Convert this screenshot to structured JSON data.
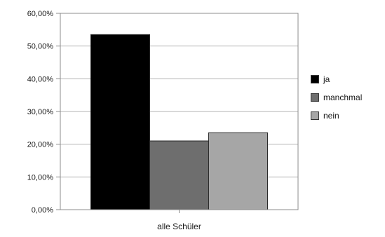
{
  "chart_data": {
    "type": "bar",
    "categories": [
      "alle Schüler"
    ],
    "series": [
      {
        "name": "ja",
        "values": [
          0.535
        ],
        "color": "#000000"
      },
      {
        "name": "manchmal",
        "values": [
          0.21
        ],
        "color": "#6e6e6e"
      },
      {
        "name": "nein",
        "values": [
          0.235
        ],
        "color": "#a6a6a6"
      }
    ],
    "ylim": [
      0,
      0.6
    ],
    "yticks": [
      0,
      0.1,
      0.2,
      0.3,
      0.4,
      0.5,
      0.6
    ],
    "ytick_labels": [
      "0,00%",
      "10,00%",
      "20,00%",
      "30,00%",
      "40,00%",
      "50,00%",
      "60,00%"
    ],
    "grid": true,
    "legend": "right",
    "title": "",
    "xlabel": "",
    "ylabel": ""
  }
}
